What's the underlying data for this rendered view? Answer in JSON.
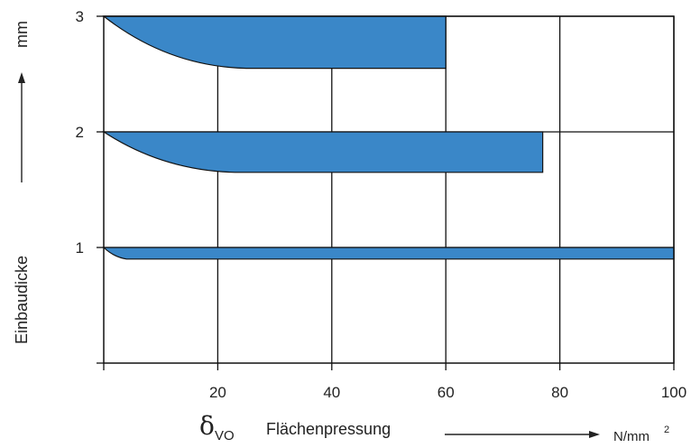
{
  "chart_data": {
    "type": "area",
    "title": "",
    "xlabel": "Flächenpressung",
    "ylabel": "Einbaudicke",
    "x_unit": "N/mm",
    "x_unit_sup": "2",
    "y_unit": "mm",
    "x_symbol": "δ",
    "x_symbol_sub": "VO",
    "xlim": [
      0,
      100
    ],
    "ylim": [
      0,
      3
    ],
    "xticks": [
      "20",
      "40",
      "60",
      "80",
      "100"
    ],
    "yticks": [
      "1",
      "2",
      "3"
    ],
    "grid": true,
    "color": "#3a87c8",
    "bands": [
      {
        "thickness": 3,
        "curve_end_x": 25,
        "bottom_y": 2.55,
        "max_x": 60
      },
      {
        "thickness": 2,
        "curve_end_x": 23,
        "bottom_y": 1.65,
        "max_x": 77
      },
      {
        "thickness": 1,
        "curve_end_x": 4,
        "bottom_y": 0.9,
        "max_x": 100
      }
    ]
  }
}
